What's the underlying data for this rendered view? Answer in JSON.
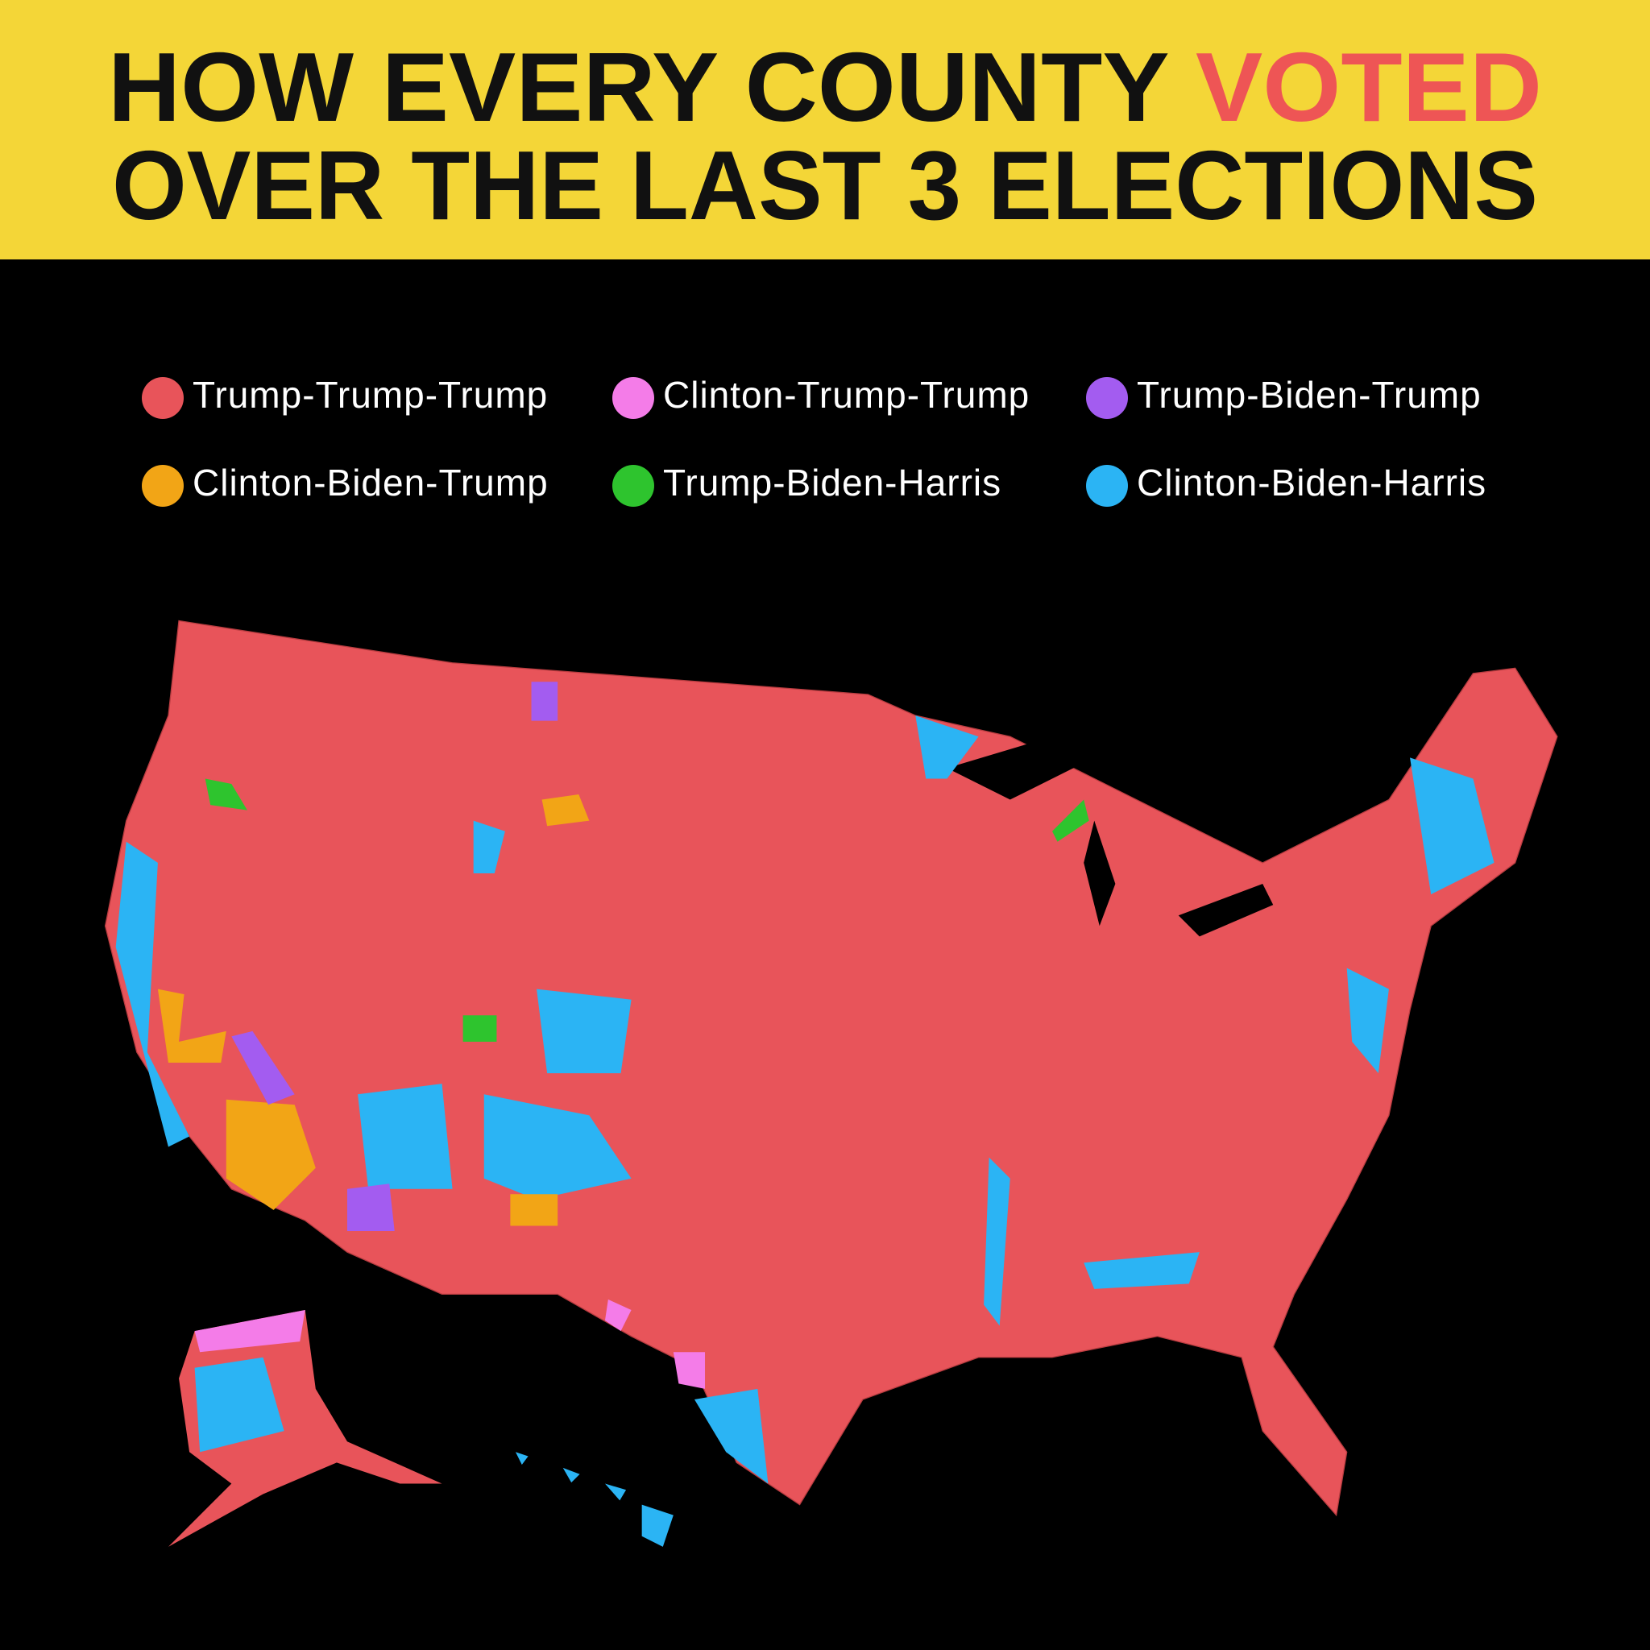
{
  "header": {
    "title_line1": "HOW EVERY COUNTY",
    "title_highlight": "VOTED",
    "title_line2": "OVER THE LAST 3 ELECTIONS"
  },
  "legend": [
    {
      "name": "Trump-Trump-Trump",
      "color": "#e8545a"
    },
    {
      "name": "Clinton-Trump-Trump",
      "color": "#f47ce8"
    },
    {
      "name": "Trump-Biden-Trump",
      "color": "#a35cf0"
    },
    {
      "name": "Clinton-Biden-Trump",
      "color": "#f2a516"
    },
    {
      "name": "Trump-Biden-Harris",
      "color": "#2ec42e"
    },
    {
      "name": "Clinton-Biden-Harris",
      "color": "#2bb4f4"
    }
  ]
}
